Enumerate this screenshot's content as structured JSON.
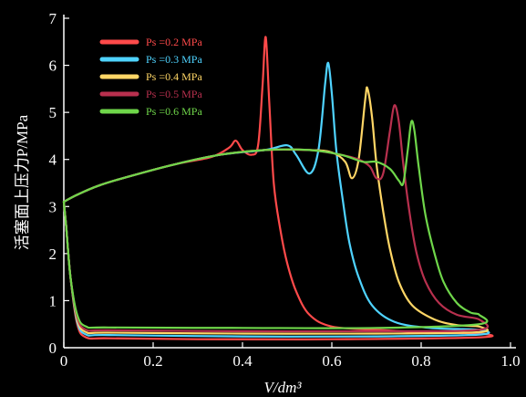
{
  "chart_data": {
    "type": "line",
    "xlabel": "V/dm³",
    "ylabel": "活塞面上压力P/MPa",
    "xlim": [
      0,
      1.0
    ],
    "ylim": [
      0,
      7
    ],
    "x_ticks": [
      "0",
      "0.2",
      "0.4",
      "0.6",
      "0.8",
      "1.0"
    ],
    "y_ticks": [
      "0",
      "1",
      "2",
      "3",
      "4",
      "5",
      "6",
      "7"
    ],
    "grid": false,
    "legend_position": "top-left",
    "series": [
      {
        "name": "Ps =0.2 MPa",
        "color": "#ff4a4a",
        "points": [
          [
            0.0,
            3.1
          ],
          [
            0.03,
            3.25
          ],
          [
            0.08,
            3.45
          ],
          [
            0.15,
            3.65
          ],
          [
            0.25,
            3.9
          ],
          [
            0.33,
            4.05
          ],
          [
            0.37,
            4.25
          ],
          [
            0.385,
            4.4
          ],
          [
            0.4,
            4.2
          ],
          [
            0.42,
            4.1
          ],
          [
            0.435,
            4.3
          ],
          [
            0.445,
            5.6
          ],
          [
            0.452,
            6.6
          ],
          [
            0.46,
            5.2
          ],
          [
            0.47,
            3.5
          ],
          [
            0.485,
            2.5
          ],
          [
            0.5,
            1.8
          ],
          [
            0.52,
            1.2
          ],
          [
            0.55,
            0.7
          ],
          [
            0.6,
            0.45
          ],
          [
            0.7,
            0.38
          ],
          [
            0.8,
            0.33
          ],
          [
            0.93,
            0.3
          ],
          [
            0.93,
            0.22
          ],
          [
            0.6,
            0.18
          ],
          [
            0.3,
            0.18
          ],
          [
            0.1,
            0.2
          ],
          [
            0.05,
            0.22
          ],
          [
            0.03,
            0.5
          ],
          [
            0.015,
            1.5
          ],
          [
            0.005,
            2.6
          ],
          [
            0.0,
            3.1
          ]
        ]
      },
      {
        "name": "Ps =0.3 MPa",
        "color": "#4fd3ff",
        "points": [
          [
            0.0,
            3.1
          ],
          [
            0.03,
            3.25
          ],
          [
            0.08,
            3.45
          ],
          [
            0.15,
            3.65
          ],
          [
            0.25,
            3.9
          ],
          [
            0.35,
            4.1
          ],
          [
            0.45,
            4.2
          ],
          [
            0.5,
            4.3
          ],
          [
            0.52,
            4.1
          ],
          [
            0.55,
            3.7
          ],
          [
            0.57,
            4.2
          ],
          [
            0.585,
            5.6
          ],
          [
            0.592,
            6.05
          ],
          [
            0.6,
            5.4
          ],
          [
            0.61,
            4.2
          ],
          [
            0.625,
            3.1
          ],
          [
            0.64,
            2.2
          ],
          [
            0.66,
            1.5
          ],
          [
            0.69,
            0.9
          ],
          [
            0.74,
            0.55
          ],
          [
            0.82,
            0.42
          ],
          [
            0.93,
            0.38
          ],
          [
            0.93,
            0.28
          ],
          [
            0.7,
            0.24
          ],
          [
            0.4,
            0.24
          ],
          [
            0.1,
            0.27
          ],
          [
            0.05,
            0.28
          ],
          [
            0.03,
            0.55
          ],
          [
            0.015,
            1.5
          ],
          [
            0.005,
            2.6
          ],
          [
            0.0,
            3.1
          ]
        ]
      },
      {
        "name": "Ps =0.4 MPa",
        "color": "#ffd666",
        "points": [
          [
            0.0,
            3.1
          ],
          [
            0.03,
            3.25
          ],
          [
            0.08,
            3.45
          ],
          [
            0.15,
            3.65
          ],
          [
            0.25,
            3.9
          ],
          [
            0.35,
            4.1
          ],
          [
            0.45,
            4.2
          ],
          [
            0.55,
            4.2
          ],
          [
            0.6,
            4.15
          ],
          [
            0.63,
            3.95
          ],
          [
            0.645,
            3.6
          ],
          [
            0.66,
            4.0
          ],
          [
            0.675,
            5.3
          ],
          [
            0.68,
            5.5
          ],
          [
            0.69,
            4.9
          ],
          [
            0.7,
            3.9
          ],
          [
            0.715,
            2.9
          ],
          [
            0.73,
            2.1
          ],
          [
            0.75,
            1.4
          ],
          [
            0.78,
            0.9
          ],
          [
            0.83,
            0.6
          ],
          [
            0.88,
            0.48
          ],
          [
            0.93,
            0.45
          ],
          [
            0.93,
            0.33
          ],
          [
            0.7,
            0.3
          ],
          [
            0.4,
            0.3
          ],
          [
            0.1,
            0.32
          ],
          [
            0.05,
            0.33
          ],
          [
            0.03,
            0.6
          ],
          [
            0.015,
            1.5
          ],
          [
            0.005,
            2.6
          ],
          [
            0.0,
            3.1
          ]
        ]
      },
      {
        "name": "Ps =0.5 MPa",
        "color": "#b8304e",
        "points": [
          [
            0.0,
            3.1
          ],
          [
            0.03,
            3.25
          ],
          [
            0.08,
            3.45
          ],
          [
            0.15,
            3.65
          ],
          [
            0.25,
            3.9
          ],
          [
            0.35,
            4.1
          ],
          [
            0.45,
            4.2
          ],
          [
            0.55,
            4.2
          ],
          [
            0.62,
            4.1
          ],
          [
            0.66,
            4.0
          ],
          [
            0.685,
            3.85
          ],
          [
            0.7,
            3.6
          ],
          [
            0.715,
            3.7
          ],
          [
            0.73,
            4.6
          ],
          [
            0.74,
            5.15
          ],
          [
            0.75,
            4.8
          ],
          [
            0.76,
            3.9
          ],
          [
            0.775,
            2.8
          ],
          [
            0.79,
            2.0
          ],
          [
            0.81,
            1.4
          ],
          [
            0.84,
            0.95
          ],
          [
            0.88,
            0.7
          ],
          [
            0.93,
            0.6
          ],
          [
            0.93,
            0.38
          ],
          [
            0.7,
            0.35
          ],
          [
            0.4,
            0.35
          ],
          [
            0.1,
            0.37
          ],
          [
            0.05,
            0.38
          ],
          [
            0.03,
            0.65
          ],
          [
            0.015,
            1.5
          ],
          [
            0.005,
            2.6
          ],
          [
            0.0,
            3.1
          ]
        ]
      },
      {
        "name": "Ps =0.6 MPa",
        "color": "#6fd64a",
        "points": [
          [
            0.0,
            3.1
          ],
          [
            0.03,
            3.25
          ],
          [
            0.08,
            3.45
          ],
          [
            0.15,
            3.65
          ],
          [
            0.25,
            3.9
          ],
          [
            0.35,
            4.1
          ],
          [
            0.45,
            4.2
          ],
          [
            0.55,
            4.2
          ],
          [
            0.62,
            4.1
          ],
          [
            0.67,
            3.95
          ],
          [
            0.7,
            3.95
          ],
          [
            0.73,
            3.8
          ],
          [
            0.75,
            3.55
          ],
          [
            0.76,
            3.5
          ],
          [
            0.77,
            4.2
          ],
          [
            0.778,
            4.8
          ],
          [
            0.785,
            4.6
          ],
          [
            0.795,
            3.8
          ],
          [
            0.81,
            2.8
          ],
          [
            0.83,
            2.0
          ],
          [
            0.85,
            1.4
          ],
          [
            0.88,
            0.95
          ],
          [
            0.91,
            0.75
          ],
          [
            0.93,
            0.7
          ],
          [
            0.93,
            0.5
          ],
          [
            0.7,
            0.42
          ],
          [
            0.4,
            0.42
          ],
          [
            0.1,
            0.43
          ],
          [
            0.05,
            0.45
          ],
          [
            0.03,
            0.7
          ],
          [
            0.015,
            1.5
          ],
          [
            0.005,
            2.6
          ],
          [
            0.0,
            3.1
          ]
        ]
      }
    ]
  }
}
